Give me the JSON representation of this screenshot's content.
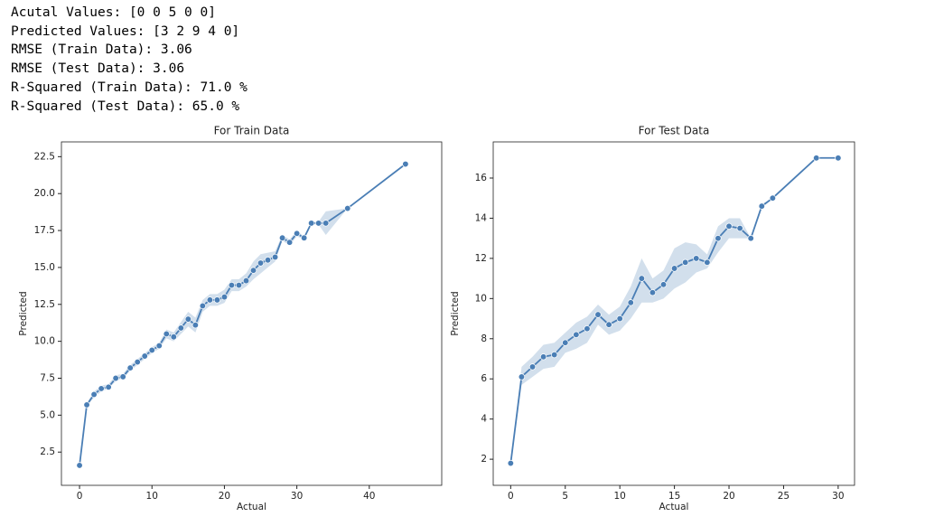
{
  "output_lines": [
    "Acutal Values: [0 0 5 0 0]",
    "Predicted Values: [3 2 9 4 0]",
    "RMSE (Train Data): 3.06",
    "RMSE (Test Data): 3.06",
    "R-Squared (Train Data): 71.0 %",
    "R-Squared (Test Data): 65.0 %"
  ],
  "chart_data": [
    {
      "type": "line",
      "title": "For Train Data",
      "x_label": "Actual",
      "y_label": "Predicted",
      "color": "#4a7eb5",
      "x": [
        0,
        1,
        2,
        3,
        4,
        5,
        6,
        7,
        8,
        9,
        10,
        11,
        12,
        13,
        14,
        15,
        16,
        17,
        18,
        19,
        20,
        21,
        22,
        23,
        24,
        25,
        26,
        27,
        28,
        29,
        30,
        31,
        32,
        33,
        34,
        37,
        45
      ],
      "values": [
        1.6,
        5.7,
        6.4,
        6.8,
        6.9,
        7.5,
        7.6,
        8.2,
        8.6,
        9.0,
        9.4,
        9.7,
        10.5,
        10.3,
        10.9,
        11.5,
        11.1,
        12.4,
        12.8,
        12.8,
        13.0,
        13.8,
        13.8,
        14.1,
        14.8,
        15.3,
        15.5,
        15.7,
        17.0,
        16.7,
        17.3,
        17.0,
        18.0,
        18.0,
        18.0,
        19.0,
        22.0
      ],
      "ci_lower": [
        1.6,
        5.6,
        6.2,
        6.6,
        6.8,
        7.3,
        7.5,
        8.0,
        8.4,
        8.8,
        9.2,
        9.5,
        10.2,
        10.0,
        10.5,
        11.0,
        10.6,
        12.0,
        12.4,
        12.4,
        12.6,
        13.4,
        13.4,
        13.7,
        14.2,
        14.6,
        15.0,
        15.4,
        16.8,
        16.5,
        17.1,
        16.9,
        17.9,
        17.9,
        17.2,
        19.0,
        22.0
      ],
      "ci_upper": [
        1.6,
        5.8,
        6.6,
        7.0,
        7.1,
        7.7,
        7.8,
        8.4,
        8.8,
        9.2,
        9.6,
        9.9,
        10.8,
        10.6,
        11.3,
        12.0,
        11.6,
        12.8,
        13.2,
        13.2,
        13.5,
        14.2,
        14.2,
        14.6,
        15.4,
        15.9,
        16.0,
        16.1,
        17.2,
        16.9,
        17.5,
        17.1,
        18.1,
        18.1,
        18.8,
        19.0,
        22.0
      ],
      "xlim": [
        -2.5,
        50
      ],
      "ylim": [
        0.25,
        23.5
      ],
      "xticks": [
        0,
        10,
        20,
        30,
        40
      ],
      "yticks": [
        2.5,
        {
          "value": 5,
          "label": "5.0"
        },
        7.5,
        {
          "value": 10,
          "label": "10.0"
        },
        12.5,
        {
          "value": 15,
          "label": "15.0"
        },
        17.5,
        {
          "value": 20,
          "label": "20.0"
        },
        22.5
      ]
    },
    {
      "type": "line",
      "title": "For Test Data",
      "x_label": "Actual",
      "y_label": "Predicted",
      "color": "#4a7eb5",
      "x": [
        0,
        1,
        2,
        3,
        4,
        5,
        6,
        7,
        8,
        9,
        10,
        11,
        12,
        13,
        14,
        15,
        16,
        17,
        18,
        19,
        20,
        21,
        22,
        23,
        24,
        28,
        30
      ],
      "values": [
        1.8,
        6.1,
        6.6,
        7.1,
        7.2,
        7.8,
        8.2,
        8.5,
        9.2,
        8.7,
        9.0,
        9.8,
        11.0,
        10.3,
        10.7,
        11.5,
        11.8,
        12.0,
        11.8,
        13.0,
        13.6,
        13.5,
        13.0,
        14.6,
        15.0,
        17.0,
        17.0
      ],
      "ci_lower": [
        1.8,
        5.7,
        6.1,
        6.5,
        6.6,
        7.3,
        7.5,
        7.8,
        8.7,
        8.2,
        8.4,
        9.0,
        9.8,
        9.8,
        10.0,
        10.5,
        10.8,
        11.3,
        11.5,
        12.3,
        13.0,
        13.0,
        13.0,
        14.5,
        15.0,
        17.0,
        17.0
      ],
      "ci_upper": [
        1.8,
        6.6,
        7.1,
        7.7,
        7.8,
        8.3,
        8.8,
        9.1,
        9.7,
        9.2,
        9.6,
        10.6,
        12.0,
        11.0,
        11.4,
        12.5,
        12.8,
        12.7,
        12.2,
        13.6,
        14.0,
        14.0,
        13.0,
        14.7,
        15.0,
        17.0,
        17.0
      ],
      "xlim": [
        -1.6,
        31.5
      ],
      "ylim": [
        0.7,
        17.8
      ],
      "xticks": [
        0,
        5,
        10,
        15,
        20,
        25,
        30
      ],
      "yticks": [
        2,
        4,
        6,
        8,
        10,
        12,
        14,
        16
      ]
    }
  ]
}
